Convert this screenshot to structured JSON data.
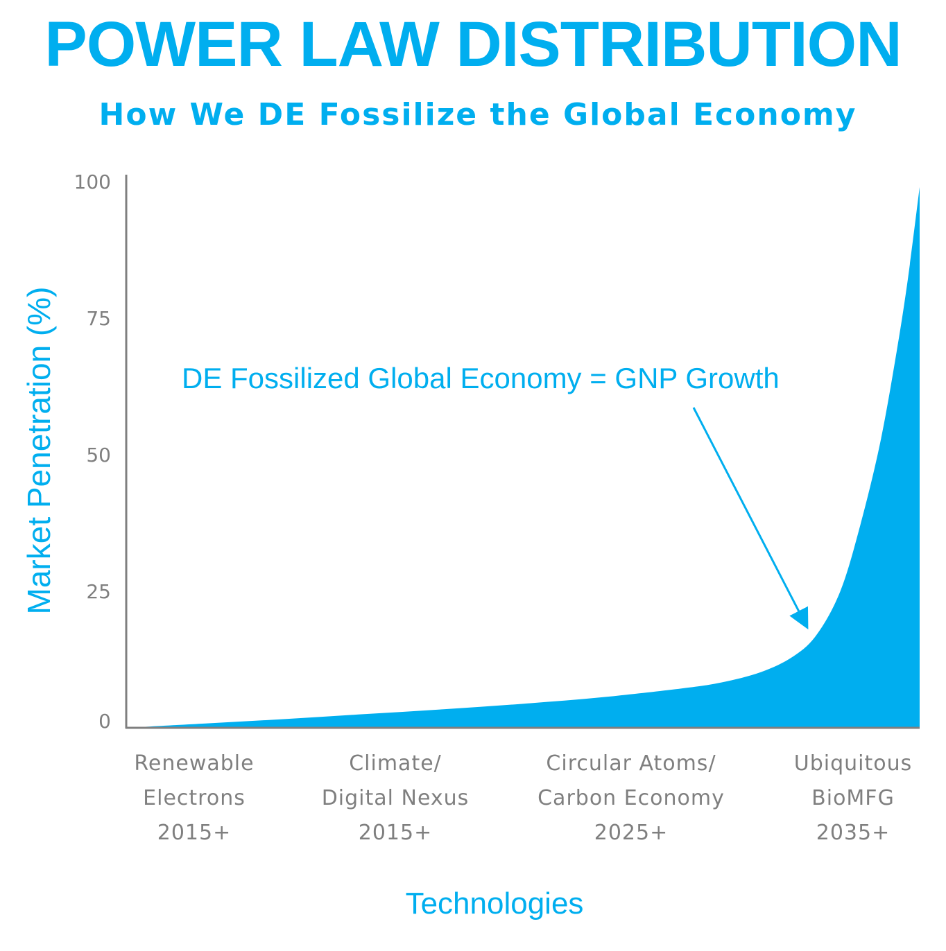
{
  "chart_data": {
    "type": "area",
    "title": "POWER LAW DISTRIBUTION",
    "subtitle": "How We DE Fossilize the Global Economy",
    "ylabel": "Market Penetration (%)",
    "xlabel": "Technologies",
    "ylim": [
      0,
      100
    ],
    "yticks": [
      "0",
      "25",
      "50",
      "75",
      "100"
    ],
    "categories": [
      {
        "lines": [
          "Renewable",
          "Electrons",
          "2015+"
        ]
      },
      {
        "lines": [
          "Climate/",
          "Digital Nexus",
          "2015+"
        ]
      },
      {
        "lines": [
          "Circular Atoms/",
          "Carbon Economy",
          "2025+"
        ]
      },
      {
        "lines": [
          "Ubiquitous",
          "BioMFG",
          "2035+"
        ]
      }
    ],
    "series": [
      {
        "name": "Market Penetration",
        "color": "#00aeef",
        "x": [
          0,
          0.1,
          0.2,
          0.3,
          0.4,
          0.5,
          0.6,
          0.7,
          0.75,
          0.8,
          0.84,
          0.87,
          0.9,
          0.925,
          0.95,
          0.97,
          0.985,
          1.0
        ],
        "values": [
          0,
          0.8,
          1.6,
          2.5,
          3.4,
          4.4,
          5.6,
          7.2,
          8.3,
          10.2,
          13,
          17,
          25,
          37,
          52,
          68,
          82,
          99
        ]
      }
    ],
    "annotation": {
      "text": "DE Fossilized Global Economy = GNP Growth",
      "target_x": 0.856,
      "target_y": 18
    },
    "colors": {
      "accent": "#00aeef",
      "axis": "#7f7f7f"
    }
  }
}
